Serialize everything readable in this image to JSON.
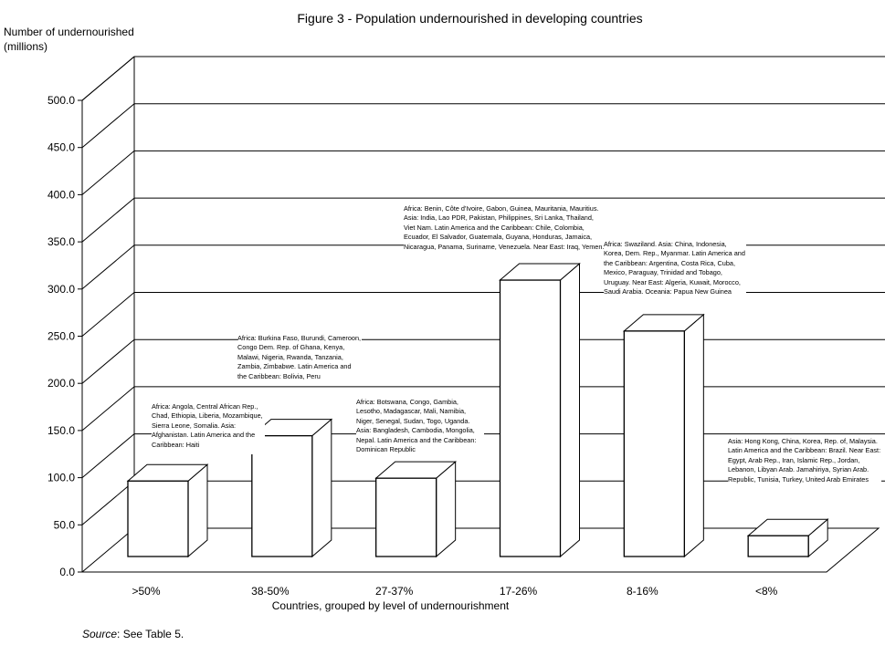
{
  "chart_data": {
    "type": "bar",
    "title": "Figure 3 - Population undernourished  in developing countries",
    "ylabel_lines": [
      "Number of undernourished",
      "(millions)"
    ],
    "xlabel": "Countries,  grouped by level of undernourishment",
    "ylim": [
      0,
      500
    ],
    "yticks": [
      "0.0",
      "50.0",
      "100.0",
      "150.0",
      "200.0",
      "250.0",
      "300.0",
      "350.0",
      "400.0",
      "450.0",
      "500.0"
    ],
    "categories": [
      ">50%",
      "38-50%",
      "27-37%",
      "17-26%",
      "8-16%",
      "<8%"
    ],
    "values": [
      80,
      128,
      83,
      293,
      239,
      22
    ],
    "annotations": [
      "Africa: Angola, Central African Rep., Chad, Ethiopia, Liberia, Mozambique, Sierra Leone, Somalia. Asia: Afghanistan. Latin America and the Caribbean: Haiti",
      "Africa: Burkina Faso, Burundi, Cameroon, Congo Dem. Rep. of Ghana, Kenya, Malawi, Nigeria, Rwanda, Tanzania, Zambia, Zimbabwe. Latin America and the Caribbean: Bolivia, Peru",
      "Africa: Botswana, Congo, Gambia, Lesotho, Madagascar, Mali, Namibia, Niger, Senegal, Sudan, Togo, Uganda. Asia: Bangladesh, Cambodia, Mongolia, Nepal. Latin America and the Caribbean: Dominican Republic",
      "Africa: Benin, Côte d'Ivoire, Gabon, Guinea, Mauritania, Mauritius. Asia: India, Lao PDR, Pakistan, Philippines, Sri Lanka, Thailand, Viet Nam. Latin America and the Caribbean: Chile, Colombia, Ecuador, El Salvador, Guatemala, Guyana, Honduras, Jamaica, Nicaragua, Panama, Suriname, Venezuela. Near East: Iraq, Yemen.",
      "Africa: Swaziland. Asia: China, Indonesia, Korea, Dem. Rep., Myanmar. Latin America and the Caribbean: Argentina, Costa Rica, Cuba, Mexico, Paraguay, Trinidad and Tobago, Uruguay. Near East: Algeria, Kuwait, Morocco, Saudi Arabia. Oceania: Papua New Guinea",
      "Asia: Hong Kong, China, Korea, Rep. of, Malaysia. Latin America and the Caribbean: Brazil. Near East: Egypt, Arab Rep., Iran, Islamic Rep., Jordan, Lebanon, Libyan Arab. Jamahiriya, Syrian Arab. Republic, Tunisia, Turkey, United Arab Emirates"
    ]
  },
  "footer": {
    "source_label": "Source",
    "source_text": ": See Table 5."
  },
  "colors": {
    "bar_fill": "#ffffff",
    "line": "#000000"
  }
}
